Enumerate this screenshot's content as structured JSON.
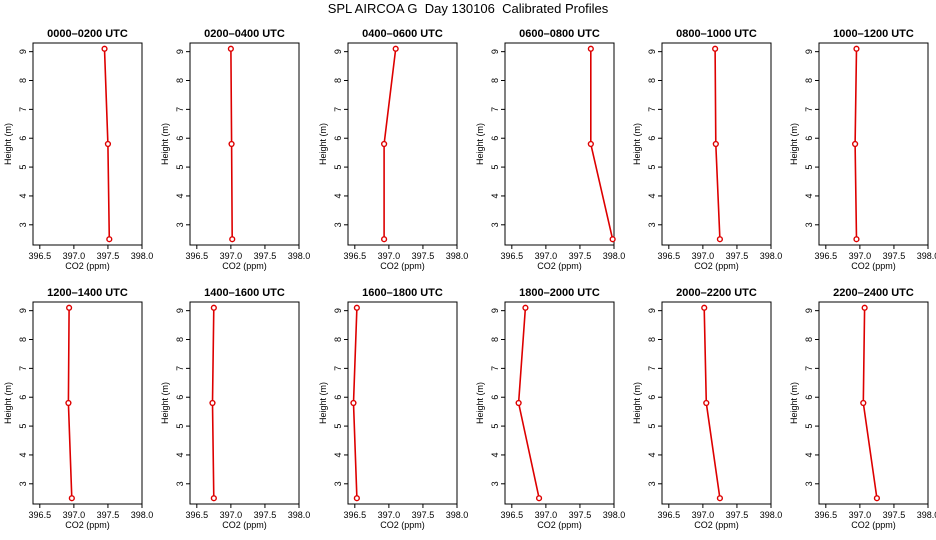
{
  "figure_title": "SPL AIRCOA G  Day 130106  Calibrated Profiles",
  "colors": {
    "profile": "#dd0000",
    "axis": "#000000"
  },
  "chart_data": [
    {
      "type": "line",
      "title": "0000–0200 UTC",
      "xlabel": "CO2 (ppm)",
      "ylabel": "Height (m)",
      "xlim": [
        396.4,
        398.0
      ],
      "ylim": [
        2.3,
        9.3
      ],
      "xticks": [
        "396.5",
        "397.0",
        "397.5",
        "398.0"
      ],
      "yticks": [
        "3",
        "4",
        "5",
        "6",
        "7",
        "8",
        "9"
      ],
      "x": [
        397.52,
        397.5,
        397.45
      ],
      "y": [
        2.5,
        5.8,
        9.1
      ]
    },
    {
      "type": "line",
      "title": "0200–0400 UTC",
      "xlabel": "CO2 (ppm)",
      "ylabel": "Height (m)",
      "xlim": [
        396.4,
        398.0
      ],
      "ylim": [
        2.3,
        9.3
      ],
      "xticks": [
        "396.5",
        "397.0",
        "397.5",
        "398.0"
      ],
      "yticks": [
        "3",
        "4",
        "5",
        "6",
        "7",
        "8",
        "9"
      ],
      "x": [
        397.02,
        397.01,
        397.0
      ],
      "y": [
        2.5,
        5.8,
        9.1
      ]
    },
    {
      "type": "line",
      "title": "0400–0600 UTC",
      "xlabel": "CO2 (ppm)",
      "ylabel": "Height (m)",
      "xlim": [
        396.4,
        398.0
      ],
      "ylim": [
        2.3,
        9.3
      ],
      "xticks": [
        "396.5",
        "397.0",
        "397.5",
        "398.0"
      ],
      "yticks": [
        "3",
        "4",
        "5",
        "6",
        "7",
        "8",
        "9"
      ],
      "x": [
        396.93,
        396.93,
        397.1
      ],
      "y": [
        2.5,
        5.8,
        9.1
      ]
    },
    {
      "type": "line",
      "title": "0600–0800 UTC",
      "xlabel": "CO2 (ppm)",
      "ylabel": "Height (m)",
      "xlim": [
        396.4,
        398.0
      ],
      "ylim": [
        2.3,
        9.3
      ],
      "xticks": [
        "396.5",
        "397.0",
        "397.5",
        "398.0"
      ],
      "yticks": [
        "3",
        "4",
        "5",
        "6",
        "7",
        "8",
        "9"
      ],
      "x": [
        397.98,
        397.66,
        397.66
      ],
      "y": [
        2.5,
        5.8,
        9.1
      ]
    },
    {
      "type": "line",
      "title": "0800–1000 UTC",
      "xlabel": "CO2 (ppm)",
      "ylabel": "Height (m)",
      "xlim": [
        396.4,
        398.0
      ],
      "ylim": [
        2.3,
        9.3
      ],
      "xticks": [
        "396.5",
        "397.0",
        "397.5",
        "398.0"
      ],
      "yticks": [
        "3",
        "4",
        "5",
        "6",
        "7",
        "8",
        "9"
      ],
      "x": [
        397.25,
        397.19,
        397.18
      ],
      "y": [
        2.5,
        5.8,
        9.1
      ]
    },
    {
      "type": "line",
      "title": "1000–1200 UTC",
      "xlabel": "CO2 (ppm)",
      "ylabel": "Height (m)",
      "xlim": [
        396.4,
        398.0
      ],
      "ylim": [
        2.3,
        9.3
      ],
      "xticks": [
        "396.5",
        "397.0",
        "397.5",
        "398.0"
      ],
      "yticks": [
        "3",
        "4",
        "5",
        "6",
        "7",
        "8",
        "9"
      ],
      "x": [
        396.95,
        396.93,
        396.95
      ],
      "y": [
        2.5,
        5.8,
        9.1
      ]
    },
    {
      "type": "line",
      "title": "1200–1400 UTC",
      "xlabel": "CO2 (ppm)",
      "ylabel": "Height (m)",
      "xlim": [
        396.4,
        398.0
      ],
      "ylim": [
        2.3,
        9.3
      ],
      "xticks": [
        "396.5",
        "397.0",
        "397.5",
        "398.0"
      ],
      "yticks": [
        "3",
        "4",
        "5",
        "6",
        "7",
        "8",
        "9"
      ],
      "x": [
        396.97,
        396.92,
        396.93
      ],
      "y": [
        2.5,
        5.8,
        9.1
      ]
    },
    {
      "type": "line",
      "title": "1400–1600 UTC",
      "xlabel": "CO2 (ppm)",
      "ylabel": "Height (m)",
      "xlim": [
        396.4,
        398.0
      ],
      "ylim": [
        2.3,
        9.3
      ],
      "xticks": [
        "396.5",
        "397.0",
        "397.5",
        "398.0"
      ],
      "yticks": [
        "3",
        "4",
        "5",
        "6",
        "7",
        "8",
        "9"
      ],
      "x": [
        396.75,
        396.73,
        396.75
      ],
      "y": [
        2.5,
        5.8,
        9.1
      ]
    },
    {
      "type": "line",
      "title": "1600–1800 UTC",
      "xlabel": "CO2 (ppm)",
      "ylabel": "Height (m)",
      "xlim": [
        396.4,
        398.0
      ],
      "ylim": [
        2.3,
        9.3
      ],
      "xticks": [
        "396.5",
        "397.0",
        "397.5",
        "398.0"
      ],
      "yticks": [
        "3",
        "4",
        "5",
        "6",
        "7",
        "8",
        "9"
      ],
      "x": [
        396.53,
        396.48,
        396.53
      ],
      "y": [
        2.5,
        5.8,
        9.1
      ]
    },
    {
      "type": "line",
      "title": "1800–2000 UTC",
      "xlabel": "CO2 (ppm)",
      "ylabel": "Height (m)",
      "xlim": [
        396.4,
        398.0
      ],
      "ylim": [
        2.3,
        9.3
      ],
      "xticks": [
        "396.5",
        "397.0",
        "397.5",
        "398.0"
      ],
      "yticks": [
        "3",
        "4",
        "5",
        "6",
        "7",
        "8",
        "9"
      ],
      "x": [
        396.9,
        396.6,
        396.7
      ],
      "y": [
        2.5,
        5.8,
        9.1
      ]
    },
    {
      "type": "line",
      "title": "2000–2200 UTC",
      "xlabel": "CO2 (ppm)",
      "ylabel": "Height (m)",
      "xlim": [
        396.4,
        398.0
      ],
      "ylim": [
        2.3,
        9.3
      ],
      "xticks": [
        "396.5",
        "397.0",
        "397.5",
        "398.0"
      ],
      "yticks": [
        "3",
        "4",
        "5",
        "6",
        "7",
        "8",
        "9"
      ],
      "x": [
        397.25,
        397.05,
        397.02
      ],
      "y": [
        2.5,
        5.8,
        9.1
      ]
    },
    {
      "type": "line",
      "title": "2200–2400 UTC",
      "xlabel": "CO2 (ppm)",
      "ylabel": "Height (m)",
      "xlim": [
        396.4,
        398.0
      ],
      "ylim": [
        2.3,
        9.3
      ],
      "xticks": [
        "396.5",
        "397.0",
        "397.5",
        "398.0"
      ],
      "yticks": [
        "3",
        "4",
        "5",
        "6",
        "7",
        "8",
        "9"
      ],
      "x": [
        397.25,
        397.05,
        397.07
      ],
      "y": [
        2.5,
        5.8,
        9.1
      ]
    }
  ]
}
